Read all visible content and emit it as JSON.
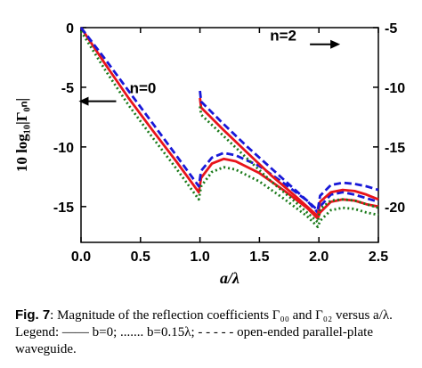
{
  "chart_data": {
    "type": "line",
    "xlabel": "a/λ",
    "ylabel_left": "10 log₁₀|Γ₀ₙ|",
    "xlim": [
      0,
      2.5
    ],
    "ylim_left": [
      -18,
      0
    ],
    "ylim_right": [
      -23,
      -5
    ],
    "x_ticks": [
      "0.0",
      "0.5",
      "1.0",
      "1.5",
      "2.0",
      "2.5"
    ],
    "y_ticks_left": [
      "0",
      "-5",
      "-10",
      "-15"
    ],
    "y_ticks_right": [
      "-5",
      "-10",
      "-15",
      "-20"
    ],
    "grid": false,
    "annotations": [
      {
        "text": "n=0",
        "x": 0.52,
        "y": -5.5,
        "arrow": "left",
        "axis": "left"
      },
      {
        "text": "n=2",
        "x": 1.7,
        "y": -6.1,
        "arrow": "right",
        "axis": "right"
      }
    ],
    "series": [
      {
        "id": "n0-b0",
        "order": "n=0",
        "style": "solid",
        "color": "#e8141b",
        "points": [
          [
            0.0,
            0.0
          ],
          [
            0.2,
            -3.0
          ],
          [
            0.4,
            -5.9
          ],
          [
            0.6,
            -8.6
          ],
          [
            0.8,
            -11.2
          ],
          [
            0.99,
            -13.8
          ],
          [
            1.01,
            -12.6
          ],
          [
            1.1,
            -11.4
          ],
          [
            1.2,
            -11.0
          ],
          [
            1.3,
            -11.2
          ],
          [
            1.5,
            -12.2
          ],
          [
            1.7,
            -13.6
          ],
          [
            1.9,
            -15.1
          ],
          [
            1.99,
            -16.0
          ],
          [
            2.01,
            -15.5
          ],
          [
            2.1,
            -14.6
          ],
          [
            2.2,
            -14.4
          ],
          [
            2.3,
            -14.5
          ],
          [
            2.4,
            -14.8
          ],
          [
            2.5,
            -15.0
          ]
        ]
      },
      {
        "id": "n0-b015",
        "order": "n=0",
        "style": "dotted",
        "color": "#1a7a1a",
        "points": [
          [
            0.0,
            -0.3
          ],
          [
            0.2,
            -3.5
          ],
          [
            0.4,
            -6.5
          ],
          [
            0.6,
            -9.2
          ],
          [
            0.8,
            -11.8
          ],
          [
            0.99,
            -14.4
          ],
          [
            1.01,
            -13.3
          ],
          [
            1.1,
            -12.1
          ],
          [
            1.2,
            -11.7
          ],
          [
            1.3,
            -11.9
          ],
          [
            1.5,
            -12.9
          ],
          [
            1.7,
            -14.3
          ],
          [
            1.9,
            -15.8
          ],
          [
            1.99,
            -16.7
          ],
          [
            2.01,
            -16.2
          ],
          [
            2.1,
            -15.3
          ],
          [
            2.2,
            -15.1
          ],
          [
            2.3,
            -15.2
          ],
          [
            2.4,
            -15.5
          ],
          [
            2.5,
            -15.7
          ]
        ]
      },
      {
        "id": "n0-open",
        "order": "n=0",
        "style": "dashed",
        "color": "#1818d8",
        "points": [
          [
            0.0,
            0.0
          ],
          [
            0.2,
            -2.6
          ],
          [
            0.4,
            -5.3
          ],
          [
            0.6,
            -8.0
          ],
          [
            0.8,
            -10.7
          ],
          [
            0.99,
            -13.3
          ],
          [
            1.01,
            -12.0
          ],
          [
            1.1,
            -10.9
          ],
          [
            1.2,
            -10.5
          ],
          [
            1.3,
            -10.7
          ],
          [
            1.5,
            -11.6
          ],
          [
            1.7,
            -13.0
          ],
          [
            1.9,
            -14.5
          ],
          [
            1.99,
            -15.5
          ],
          [
            2.01,
            -15.0
          ],
          [
            2.1,
            -14.0
          ],
          [
            2.2,
            -13.8
          ],
          [
            2.3,
            -14.0
          ],
          [
            2.4,
            -14.3
          ],
          [
            2.5,
            -14.6
          ]
        ]
      },
      {
        "id": "n2-b0",
        "order": "n=2",
        "style": "solid",
        "color": "#e8141b",
        "points": [
          [
            1.0,
            -5.9
          ],
          [
            1.01,
            -6.7
          ],
          [
            1.2,
            -8.6
          ],
          [
            1.4,
            -10.5
          ],
          [
            1.6,
            -12.4
          ],
          [
            1.8,
            -14.1
          ],
          [
            1.99,
            -15.8
          ],
          [
            2.01,
            -14.6
          ],
          [
            2.1,
            -13.8
          ],
          [
            2.2,
            -13.6
          ],
          [
            2.3,
            -13.7
          ],
          [
            2.4,
            -14.0
          ],
          [
            2.5,
            -14.4
          ]
        ]
      },
      {
        "id": "n2-b015",
        "order": "n=2",
        "style": "dotted",
        "color": "#1a7a1a",
        "points": [
          [
            1.0,
            -6.6
          ],
          [
            1.01,
            -7.3
          ],
          [
            1.2,
            -9.1
          ],
          [
            1.4,
            -11.0
          ],
          [
            1.6,
            -12.9
          ],
          [
            1.8,
            -14.6
          ],
          [
            1.99,
            -16.3
          ],
          [
            2.01,
            -15.2
          ],
          [
            2.1,
            -14.5
          ],
          [
            2.2,
            -14.4
          ],
          [
            2.3,
            -14.5
          ],
          [
            2.4,
            -14.8
          ],
          [
            2.5,
            -15.1
          ]
        ]
      },
      {
        "id": "n2-open",
        "order": "n=2",
        "style": "dashed",
        "color": "#1818d8",
        "points": [
          [
            1.0,
            -5.3
          ],
          [
            1.01,
            -6.2
          ],
          [
            1.2,
            -8.1
          ],
          [
            1.4,
            -10.0
          ],
          [
            1.6,
            -11.8
          ],
          [
            1.8,
            -13.6
          ],
          [
            1.99,
            -15.3
          ],
          [
            2.01,
            -14.1
          ],
          [
            2.1,
            -13.2
          ],
          [
            2.2,
            -13.0
          ],
          [
            2.3,
            -13.1
          ],
          [
            2.4,
            -13.3
          ],
          [
            2.5,
            -13.6
          ]
        ]
      }
    ]
  },
  "caption": {
    "label": "Fig. 7",
    "text": ": Magnitude of the reflection coefficients Γ₀₀ and Γ₀₂ versus a/λ. Legend: —— b=0; ....... b=0.15λ; - - - - - open-ended parallel-plate waveguide."
  }
}
